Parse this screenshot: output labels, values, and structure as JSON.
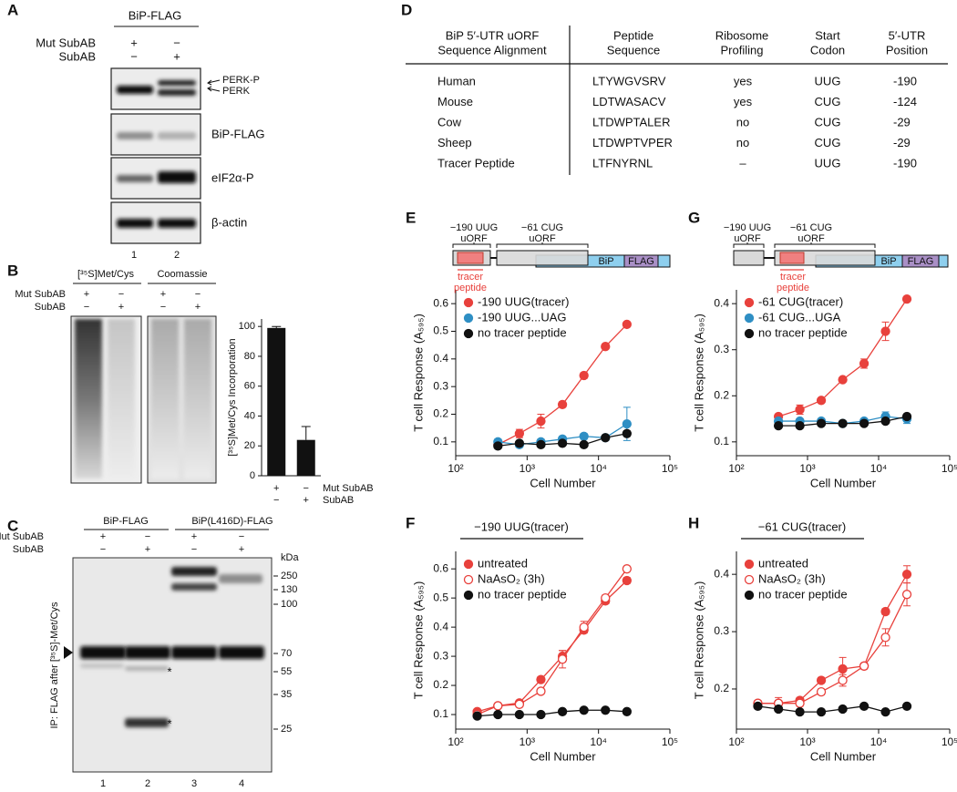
{
  "panel_letters": [
    "A",
    "B",
    "C",
    "D",
    "E",
    "F",
    "G",
    "H"
  ],
  "blot_a": {
    "header": "BiP-FLAG",
    "conditions": [
      {
        "label": "Mut SubAB",
        "signs": [
          "+",
          "−"
        ]
      },
      {
        "label": "SubAB",
        "signs": [
          "−",
          "+"
        ]
      }
    ],
    "band_labels": [
      "PERK-P",
      "PERK",
      "BiP-FLAG",
      "eIF2α-P",
      "β-actin"
    ],
    "lanes": [
      "1",
      "2"
    ]
  },
  "blot_b": {
    "headers": [
      "[³⁵S]Met/Cys",
      "Coomassie"
    ],
    "conditions": [
      {
        "label": "Mut SubAB",
        "signs": [
          "+",
          "−",
          "+",
          "−"
        ]
      },
      {
        "label": "SubAB",
        "signs": [
          "−",
          "+",
          "−",
          "+"
        ]
      }
    ]
  },
  "blot_c": {
    "headers": [
      "BiP-FLAG",
      "BiP(L416D)-FLAG"
    ],
    "conditions": [
      {
        "label": "Mut SubAB",
        "signs": [
          "+",
          "−",
          "+",
          "−"
        ]
      },
      {
        "label": "SubAB",
        "signs": [
          "−",
          "+",
          "−",
          "+"
        ]
      }
    ],
    "size_unit": "kDa",
    "size_markers": [
      "250",
      "130",
      "100",
      "70",
      "55",
      "35",
      "25"
    ],
    "y_label": "IP: FLAG after [³⁵S]-Met/Cys",
    "asterisks": [
      "*",
      "*"
    ],
    "lanes": [
      "1",
      "2",
      "3",
      "4"
    ]
  },
  "table_d": {
    "headers": [
      [
        "BiP 5′-UTR uORF",
        "Sequence Alignment"
      ],
      [
        "Peptide",
        "Sequence"
      ],
      [
        "Ribosome",
        "Profiling"
      ],
      [
        "Start",
        "Codon"
      ],
      [
        "5′-UTR",
        "Position"
      ]
    ],
    "rows": [
      [
        "Human",
        "LTYWGVSRV",
        "yes",
        "UUG",
        "-190"
      ],
      [
        "Mouse",
        "LDTWASACV",
        "yes",
        "CUG",
        "-124"
      ],
      [
        "Cow",
        "LTDWPTALER",
        "no",
        "CUG",
        "-29"
      ],
      [
        "Sheep",
        "LTDWPTVPER",
        "no",
        "CUG",
        "-29"
      ],
      [
        "Tracer Peptide",
        "LTFNYRNL",
        "–",
        "UUG",
        "-190"
      ]
    ]
  },
  "chart_data": [
    {
      "type": "bar",
      "y_label": "[³⁵S]Met/Cys Incorporation",
      "categories": [
        null,
        null
      ],
      "x_conditions": [
        {
          "label": "Mut SubAB",
          "signs": [
            "+",
            "−"
          ]
        },
        {
          "label": "SubAB",
          "signs": [
            "−",
            "+"
          ]
        }
      ],
      "values": [
        99,
        24
      ],
      "errors": [
        1,
        9
      ],
      "color": "#111111",
      "ylim": [
        0,
        105
      ],
      "yticks": [
        0,
        20,
        40,
        60,
        80,
        100
      ]
    },
    {
      "type": "line",
      "schematic": {
        "sites": [
          [
            "−190 UUG",
            "uORF"
          ],
          [
            "−61 CUG",
            "uORF"
          ]
        ],
        "boxes": [
          "BiP",
          "FLAG"
        ],
        "tracer": [
          "tracer",
          "peptide"
        ]
      },
      "x_label": "Cell Number",
      "y_label": "T cell Response (A₅₉₅)",
      "xscale": "log",
      "x": [
        390,
        780,
        1560,
        3125,
        6250,
        12500,
        25000
      ],
      "xlim": [
        100,
        100000
      ],
      "xticks": [
        {
          "value": 100,
          "label": "10²"
        },
        {
          "value": 1000,
          "label": "10³"
        },
        {
          "value": 10000,
          "label": "10⁴"
        },
        {
          "value": 100000,
          "label": "10⁵"
        }
      ],
      "ylim": [
        0.05,
        0.65
      ],
      "yticks": [
        0.1,
        0.2,
        0.3,
        0.4,
        0.5,
        0.6
      ],
      "legend": "upper left",
      "series": [
        {
          "name": "-190 UUG(tracer)",
          "color": "#e8413c",
          "marker": "filled",
          "values": [
            0.09,
            0.13,
            0.175,
            0.235,
            0.34,
            0.445,
            0.525
          ],
          "errors": [
            0.01,
            0.015,
            0.025,
            0.01,
            0.01,
            0.005,
            0.005
          ]
        },
        {
          "name": "-190 UUG...UAG",
          "color": "#2f8fc4",
          "marker": "filled",
          "values": [
            0.1,
            0.09,
            0.1,
            0.11,
            0.12,
            0.115,
            0.165
          ],
          "errors": [
            0.01,
            0.01,
            0.01,
            0.01,
            0.01,
            0.01,
            0.06
          ]
        },
        {
          "name": "no tracer peptide",
          "color": "#111111",
          "marker": "filled",
          "values": [
            0.085,
            0.095,
            0.09,
            0.095,
            0.09,
            0.115,
            0.13
          ],
          "errors": [
            0.005,
            0.005,
            0.005,
            0.005,
            0.005,
            0.005,
            0.01
          ]
        }
      ]
    },
    {
      "type": "line",
      "bracket_label": "−190 UUG(tracer)",
      "x_label": "Cell Number",
      "y_label": "T cell Response (A₅₉₅)",
      "xscale": "log",
      "x": [
        200,
        390,
        780,
        1560,
        3125,
        6250,
        12500,
        25000
      ],
      "xlim": [
        100,
        100000
      ],
      "xticks": [
        {
          "value": 100,
          "label": "10²"
        },
        {
          "value": 1000,
          "label": "10³"
        },
        {
          "value": 10000,
          "label": "10⁴"
        },
        {
          "value": 100000,
          "label": "10⁵"
        }
      ],
      "ylim": [
        0.05,
        0.66
      ],
      "yticks": [
        0.1,
        0.2,
        0.3,
        0.4,
        0.5,
        0.6
      ],
      "legend": "upper left",
      "series": [
        {
          "name": "untreated",
          "color": "#e8413c",
          "marker": "filled",
          "values": [
            0.11,
            0.13,
            0.14,
            0.22,
            0.3,
            0.39,
            0.49,
            0.56
          ],
          "errors": [
            0.005,
            0.005,
            0.005,
            0.01,
            0.02,
            0.01,
            0.01,
            0.01
          ]
        },
        {
          "name": "NaAsO₂ (3h)",
          "color": "#e8413c",
          "marker": "open",
          "values": [
            0.1,
            0.13,
            0.135,
            0.18,
            0.29,
            0.4,
            0.5,
            0.6
          ],
          "errors": [
            0.005,
            0.005,
            0.005,
            0.01,
            0.03,
            0.02,
            0.01,
            0.005
          ]
        },
        {
          "name": "no tracer peptide",
          "color": "#111111",
          "marker": "filled",
          "values": [
            0.095,
            0.1,
            0.1,
            0.1,
            0.11,
            0.115,
            0.115,
            0.11
          ],
          "errors": [
            0.005,
            0.005,
            0.005,
            0.005,
            0.005,
            0.005,
            0.005,
            0.005
          ]
        }
      ]
    },
    {
      "type": "line",
      "schematic": {
        "sites": [
          [
            "−190 UUG",
            "uORF"
          ],
          [
            "−61 CUG",
            "uORF"
          ]
        ],
        "boxes": [
          "BiP",
          "FLAG"
        ],
        "tracer": [
          "tracer",
          "peptide"
        ]
      },
      "x_label": "Cell Number",
      "y_label": "T cell Response (A₅₉₅)",
      "xscale": "log",
      "x": [
        390,
        780,
        1560,
        3125,
        6250,
        12500,
        25000
      ],
      "xlim": [
        100,
        100000
      ],
      "xticks": [
        {
          "value": 100,
          "label": "10²"
        },
        {
          "value": 1000,
          "label": "10³"
        },
        {
          "value": 10000,
          "label": "10⁴"
        },
        {
          "value": 100000,
          "label": "10⁵"
        }
      ],
      "ylim": [
        0.07,
        0.43
      ],
      "yticks": [
        0.1,
        0.2,
        0.3,
        0.4
      ],
      "legend": "upper left",
      "series": [
        {
          "name": "-61 CUG(tracer)",
          "color": "#e8413c",
          "marker": "filled",
          "values": [
            0.155,
            0.17,
            0.19,
            0.235,
            0.27,
            0.34,
            0.41
          ],
          "errors": [
            0.005,
            0.01,
            0.005,
            0.005,
            0.01,
            0.02,
            0.005
          ]
        },
        {
          "name": "-61 CUG...UGA",
          "color": "#2f8fc4",
          "marker": "filled",
          "values": [
            0.145,
            0.145,
            0.145,
            0.14,
            0.145,
            0.155,
            0.15
          ],
          "errors": [
            0.005,
            0.005,
            0.005,
            0.005,
            0.005,
            0.01,
            0.01
          ]
        },
        {
          "name": "no tracer peptide",
          "color": "#111111",
          "marker": "filled",
          "values": [
            0.135,
            0.135,
            0.14,
            0.14,
            0.14,
            0.145,
            0.155
          ],
          "errors": [
            0.003,
            0.003,
            0.003,
            0.003,
            0.003,
            0.003,
            0.005
          ]
        }
      ]
    },
    {
      "type": "line",
      "bracket_label": "−61 CUG(tracer)",
      "x_label": "Cell Number",
      "y_label": "T cell Response (A₅₉₅)",
      "xscale": "log",
      "x": [
        200,
        390,
        780,
        1560,
        3125,
        6250,
        12500,
        25000
      ],
      "xlim": [
        100,
        100000
      ],
      "xticks": [
        {
          "value": 100,
          "label": "10²"
        },
        {
          "value": 1000,
          "label": "10³"
        },
        {
          "value": 10000,
          "label": "10⁴"
        },
        {
          "value": 100000,
          "label": "10⁵"
        }
      ],
      "ylim": [
        0.13,
        0.44
      ],
      "yticks": [
        0.2,
        0.3,
        0.4
      ],
      "legend": "upper left",
      "series": [
        {
          "name": "untreated",
          "color": "#e8413c",
          "marker": "filled",
          "values": [
            0.175,
            0.175,
            0.18,
            0.215,
            0.235,
            0.24,
            0.335,
            0.4
          ],
          "errors": [
            0.005,
            0.005,
            0.005,
            0.005,
            0.02,
            0.005,
            0.005,
            0.015
          ]
        },
        {
          "name": "NaAsO₂ (3h)",
          "color": "#e8413c",
          "marker": "open",
          "values": [
            0.175,
            0.175,
            0.175,
            0.195,
            0.215,
            0.24,
            0.29,
            0.365
          ],
          "errors": [
            0.005,
            0.01,
            0.005,
            0.005,
            0.01,
            0.005,
            0.015,
            0.02
          ]
        },
        {
          "name": "no tracer peptide",
          "color": "#111111",
          "marker": "filled",
          "values": [
            0.17,
            0.165,
            0.16,
            0.16,
            0.165,
            0.17,
            0.16,
            0.17
          ],
          "errors": [
            0.003,
            0.003,
            0.003,
            0.003,
            0.003,
            0.003,
            0.003,
            0.003
          ]
        }
      ]
    }
  ]
}
